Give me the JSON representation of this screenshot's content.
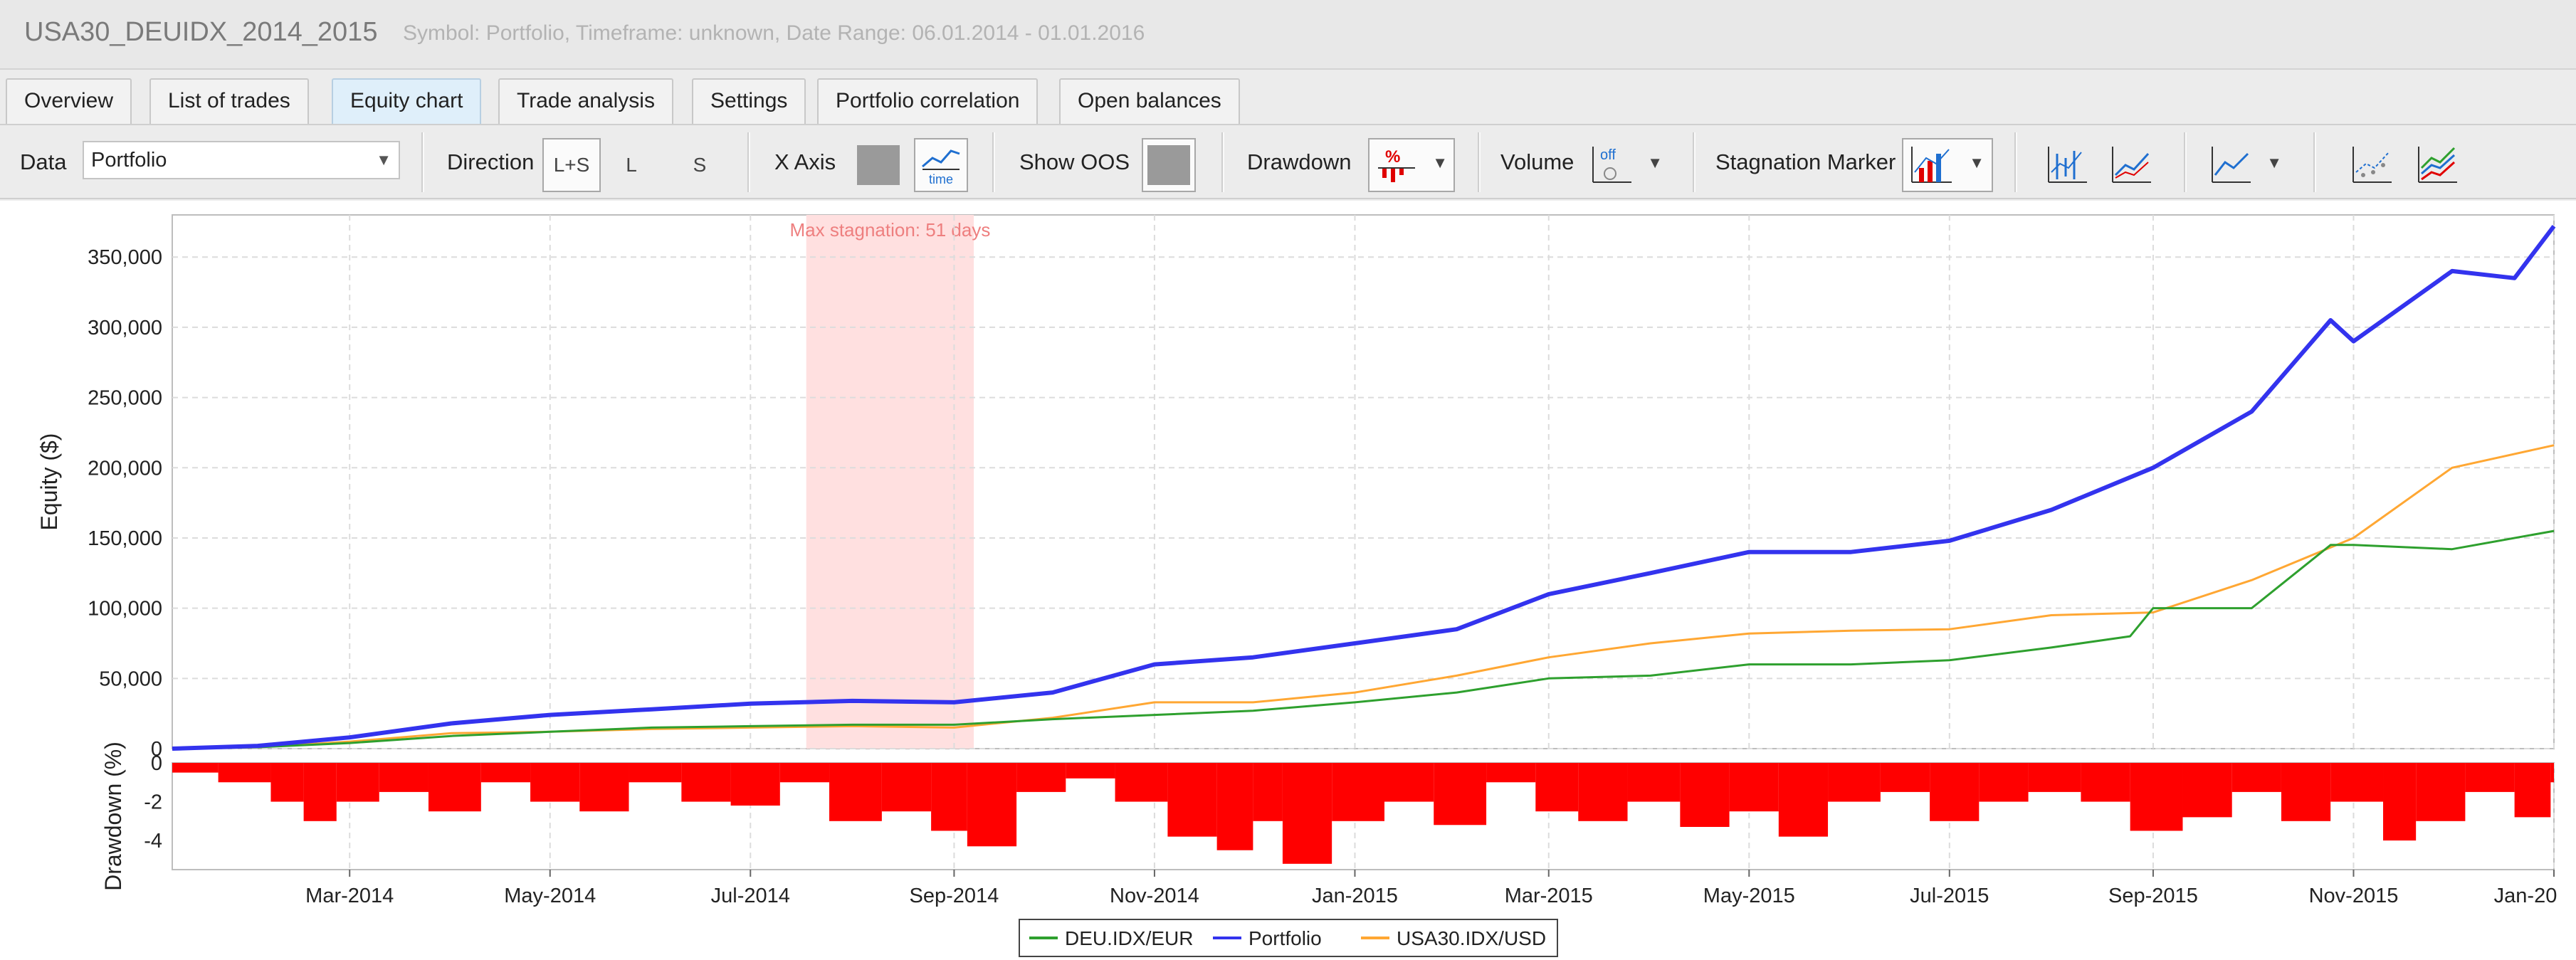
{
  "header": {
    "title": "USA30_DEUIDX_2014_2015",
    "subtitle": "Symbol: Portfolio, Timeframe: unknown, Date Range: 06.01.2014 - 01.01.2016"
  },
  "tabs": [
    {
      "label": "Overview",
      "active": false
    },
    {
      "label": "List of trades",
      "active": false
    },
    {
      "label": "Equity chart",
      "active": true
    },
    {
      "label": "Trade analysis",
      "active": false
    },
    {
      "label": "Settings",
      "active": false
    },
    {
      "label": "Portfolio correlation",
      "active": false
    },
    {
      "label": "Open balances",
      "active": false
    }
  ],
  "toolbar": {
    "data_label": "Data",
    "data_value": "Portfolio",
    "direction_label": "Direction",
    "direction_options": [
      "L+S",
      "L",
      "S"
    ],
    "xaxis_label": "X Axis",
    "xaxis_time_icon_text": "time",
    "show_oos_label": "Show OOS",
    "drawdown_label": "Drawdown",
    "volume_label": "Volume",
    "volume_icon_text": "off",
    "stagnation_label": "Stagnation Marker"
  },
  "colors": {
    "portfolio": "#3333ee",
    "deu": "#2ea02e",
    "usa": "#ffa733",
    "drawdown": "#ff0000",
    "stagnation": "#ffe0e0"
  },
  "chart_data": {
    "type": "line",
    "ylabel": "Equity ($)",
    "y_ticks": [
      "0",
      "50,000",
      "100,000",
      "150,000",
      "200,000",
      "250,000",
      "300,000",
      "350,000"
    ],
    "ylim": [
      0,
      380000
    ],
    "x_ticks": [
      "Mar-2014",
      "May-2014",
      "Jul-2014",
      "Sep-2014",
      "Nov-2014",
      "Jan-2015",
      "Mar-2015",
      "May-2015",
      "Jul-2015",
      "Sep-2015",
      "Nov-2015",
      "Jan-20"
    ],
    "x_range": [
      "2014-01-06",
      "2016-01-01"
    ],
    "stagnation": {
      "label": "Max stagnation: 51 days",
      "start": "2014-07-18",
      "end": "2014-09-07"
    },
    "series": [
      {
        "name": "DEU.IDX/EUR",
        "x": [
          "2014-01-06",
          "2014-02-01",
          "2014-03-01",
          "2014-04-01",
          "2014-05-01",
          "2014-06-01",
          "2014-07-01",
          "2014-08-01",
          "2014-09-01",
          "2014-10-01",
          "2014-11-01",
          "2014-12-01",
          "2015-01-01",
          "2015-02-01",
          "2015-03-01",
          "2015-04-01",
          "2015-05-01",
          "2015-06-01",
          "2015-07-01",
          "2015-08-01",
          "2015-08-25",
          "2015-09-01",
          "2015-10-01",
          "2015-10-25",
          "2015-11-01",
          "2015-12-01",
          "2016-01-01"
        ],
        "values": [
          0,
          1000,
          4000,
          9000,
          12000,
          15000,
          16000,
          17000,
          17000,
          21000,
          24000,
          27000,
          33000,
          40000,
          50000,
          52000,
          60000,
          60000,
          63000,
          72000,
          80000,
          100000,
          100000,
          145000,
          145000,
          142000,
          155000
        ]
      },
      {
        "name": "Portfolio",
        "x": [
          "2014-01-06",
          "2014-02-01",
          "2014-03-01",
          "2014-04-01",
          "2014-05-01",
          "2014-06-01",
          "2014-07-01",
          "2014-08-01",
          "2014-09-01",
          "2014-10-01",
          "2014-11-01",
          "2014-12-01",
          "2015-01-01",
          "2015-02-01",
          "2015-03-01",
          "2015-04-01",
          "2015-05-01",
          "2015-06-01",
          "2015-07-01",
          "2015-08-01",
          "2015-09-01",
          "2015-10-01",
          "2015-10-25",
          "2015-11-01",
          "2015-12-01",
          "2015-12-20",
          "2016-01-01"
        ],
        "values": [
          0,
          2000,
          8000,
          18000,
          24000,
          28000,
          32000,
          34000,
          33000,
          40000,
          60000,
          65000,
          75000,
          85000,
          110000,
          125000,
          140000,
          140000,
          148000,
          170000,
          200000,
          240000,
          305000,
          290000,
          340000,
          335000,
          372000
        ]
      },
      {
        "name": "USA30.IDX/USD",
        "x": [
          "2014-01-06",
          "2014-02-01",
          "2014-03-01",
          "2014-04-01",
          "2014-05-01",
          "2014-06-01",
          "2014-07-01",
          "2014-08-01",
          "2014-09-01",
          "2014-10-01",
          "2014-11-01",
          "2014-12-01",
          "2015-01-01",
          "2015-02-01",
          "2015-03-01",
          "2015-04-01",
          "2015-05-01",
          "2015-06-01",
          "2015-07-01",
          "2015-08-01",
          "2015-09-01",
          "2015-10-01",
          "2015-11-01",
          "2015-12-01",
          "2016-01-01"
        ],
        "values": [
          0,
          1000,
          5000,
          11000,
          12000,
          14000,
          15000,
          16000,
          15000,
          22000,
          33000,
          33000,
          40000,
          52000,
          65000,
          75000,
          82000,
          84000,
          85000,
          95000,
          97000,
          120000,
          150000,
          200000,
          216000
        ]
      }
    ],
    "drawdown": {
      "ylabel": "Drawdown (%)",
      "y_ticks": [
        "0",
        "-2",
        "-4"
      ],
      "ylim": [
        -5.5,
        0
      ],
      "x": [
        "2014-01-06",
        "2014-01-20",
        "2014-02-05",
        "2014-02-15",
        "2014-02-25",
        "2014-03-10",
        "2014-03-25",
        "2014-04-10",
        "2014-04-25",
        "2014-05-10",
        "2014-05-25",
        "2014-06-10",
        "2014-06-25",
        "2014-07-10",
        "2014-07-25",
        "2014-08-10",
        "2014-08-25",
        "2014-09-05",
        "2014-09-20",
        "2014-10-05",
        "2014-10-20",
        "2014-11-05",
        "2014-11-20",
        "2014-12-01",
        "2014-12-10",
        "2014-12-25",
        "2015-01-10",
        "2015-01-25",
        "2015-02-10",
        "2015-02-25",
        "2015-03-10",
        "2015-03-25",
        "2015-04-10",
        "2015-04-25",
        "2015-05-10",
        "2015-05-25",
        "2015-06-10",
        "2015-06-25",
        "2015-07-10",
        "2015-07-25",
        "2015-08-10",
        "2015-08-25",
        "2015-09-10",
        "2015-09-25",
        "2015-10-10",
        "2015-10-25",
        "2015-11-10",
        "2015-11-20",
        "2015-12-05",
        "2015-12-20",
        "2015-12-31"
      ],
      "values": [
        -0.5,
        -1,
        -2,
        -3,
        -2,
        -1.5,
        -2.5,
        -1,
        -2,
        -2.5,
        -1,
        -2,
        -2.2,
        -1,
        -3,
        -2.5,
        -3.5,
        -4.3,
        -1.5,
        -0.8,
        -2,
        -3.8,
        -4.5,
        -3,
        -5.2,
        -3,
        -2,
        -3.2,
        -1,
        -2.5,
        -3,
        -2,
        -3.3,
        -2.5,
        -3.8,
        -2,
        -1.5,
        -3,
        -2,
        -1.5,
        -2,
        -3.5,
        -2.8,
        -1.5,
        -3,
        -2,
        -4,
        -3,
        -1.5,
        -2.8,
        -1
      ]
    }
  }
}
